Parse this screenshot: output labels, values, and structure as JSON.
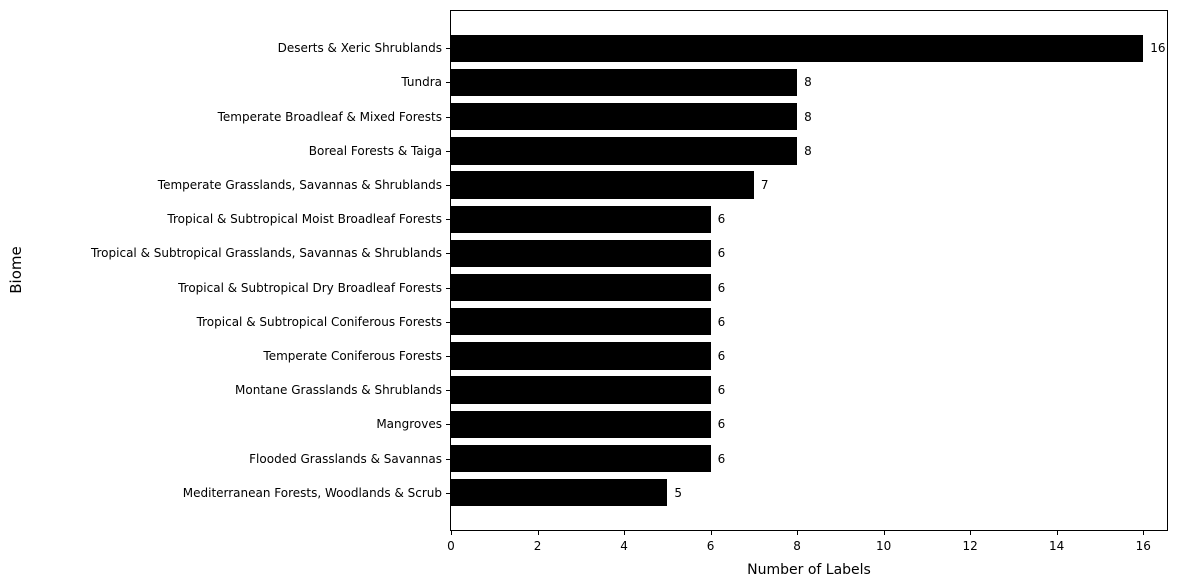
{
  "chart_data": {
    "type": "bar",
    "orientation": "horizontal",
    "title": "",
    "xlabel": "Number of Labels",
    "ylabel": "Biome",
    "categories": [
      "Deserts & Xeric Shrublands",
      "Tundra",
      "Temperate Broadleaf & Mixed Forests",
      "Boreal Forests & Taiga",
      "Temperate Grasslands, Savannas & Shrublands",
      "Tropical & Subtropical Moist Broadleaf Forests",
      "Tropical & Subtropical Grasslands, Savannas & Shrublands",
      "Tropical & Subtropical Dry Broadleaf Forests",
      "Tropical & Subtropical Coniferous Forests",
      "Temperate Coniferous Forests",
      "Montane Grasslands & Shrublands",
      "Mangroves",
      "Flooded Grasslands & Savannas",
      "Mediterranean Forests, Woodlands & Scrub"
    ],
    "values": [
      16,
      8,
      8,
      8,
      7,
      6,
      6,
      6,
      6,
      6,
      6,
      6,
      6,
      5
    ],
    "value_labels": [
      16,
      8,
      8,
      8,
      7,
      6,
      6,
      6,
      6,
      6,
      6,
      6,
      6,
      5
    ],
    "xlim": [
      0,
      16.55
    ],
    "xticks": [
      0,
      2,
      4,
      6,
      8,
      10,
      12,
      14,
      16
    ],
    "bar_color": "#000000",
    "grid": false,
    "legend": false,
    "value_labels_shown": true
  }
}
